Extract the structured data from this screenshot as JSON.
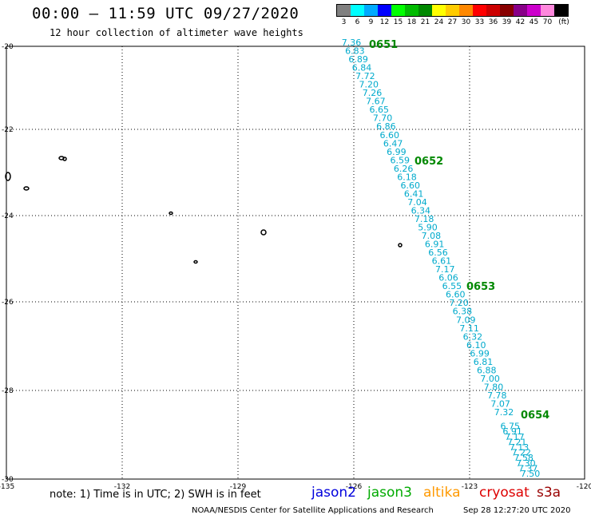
{
  "header": {
    "title": "00:00 – 11:59 UTC 09/27/2020",
    "subtitle": "12 hour collection of altimeter wave heights"
  },
  "colorbar": {
    "unit": "(ft)",
    "swatches": [
      {
        "label": "3",
        "color": "#808080"
      },
      {
        "label": "6",
        "color": "#00ffff"
      },
      {
        "label": "9",
        "color": "#00aaff"
      },
      {
        "label": "12",
        "color": "#0000ff"
      },
      {
        "label": "15",
        "color": "#00ff00"
      },
      {
        "label": "18",
        "color": "#00bb00"
      },
      {
        "label": "21",
        "color": "#008800"
      },
      {
        "label": "24",
        "color": "#ffff00"
      },
      {
        "label": "27",
        "color": "#ffcc00"
      },
      {
        "label": "30",
        "color": "#ff8800"
      },
      {
        "label": "33",
        "color": "#ff0000"
      },
      {
        "label": "36",
        "color": "#cc0000"
      },
      {
        "label": "39",
        "color": "#880000"
      },
      {
        "label": "42",
        "color": "#880088"
      },
      {
        "label": "45",
        "color": "#cc00cc"
      },
      {
        "label": "70",
        "color": "#ff88dd"
      },
      {
        "label": "",
        "color": "#000000"
      }
    ]
  },
  "map": {
    "lon_ticks": [
      "-135",
      "-132",
      "-129",
      "-126",
      "-123",
      "-120"
    ],
    "lat_ticks": [
      "-20",
      "-22",
      "-24",
      "-26",
      "-28",
      "-30"
    ],
    "time_labels": [
      {
        "text": "0651",
        "color": "#008800"
      },
      {
        "text": "0652",
        "color": "#008800"
      },
      {
        "text": "0653",
        "color": "#008800"
      },
      {
        "text": "0654",
        "color": "#008800"
      }
    ],
    "track_color": "#00aacc",
    "track_values": [
      "7.36",
      "6.83",
      "6.89",
      "6.84",
      "7.72",
      "7.20",
      "7.26",
      "7.67",
      "6.65",
      "7.70",
      "6.86",
      "6.60",
      "6.47",
      "6.99",
      "6.59",
      "6.26",
      "6.18",
      "6.60",
      "6.41",
      "7.04",
      "6.34",
      "7.18",
      "5.90",
      "7.08",
      "6.91",
      "6.56",
      "6.61",
      "7.17",
      "6.06",
      "6.55",
      "6.60",
      "7.20",
      "6.38",
      "7.09",
      "7.11",
      "6.32",
      "6.10",
      "6.99",
      "6.81",
      "6.88",
      "7.00",
      "7.80",
      "7.78",
      "7.07",
      "7.32",
      "6.75",
      "6.91",
      "7.17",
      "7.21",
      "7.13",
      "7.22",
      "7.58",
      "7.30",
      "7.37",
      "7.50"
    ]
  },
  "footer": {
    "note": "note: 1) Time is in UTC; 2) SWH is in feet",
    "legend": [
      {
        "name": "jason2",
        "color": "#0000dd"
      },
      {
        "name": "jason3",
        "color": "#00aa00"
      },
      {
        "name": "altika",
        "color": "#ff9900"
      },
      {
        "name": "cryosat",
        "color": "#dd0000"
      },
      {
        "name": "s3a",
        "color": "#990000"
      }
    ],
    "credit": "NOAA/NESDIS Center for Satellite Applications and Research",
    "timestamp": "Sep 28 12:27:20 UTC 2020"
  }
}
